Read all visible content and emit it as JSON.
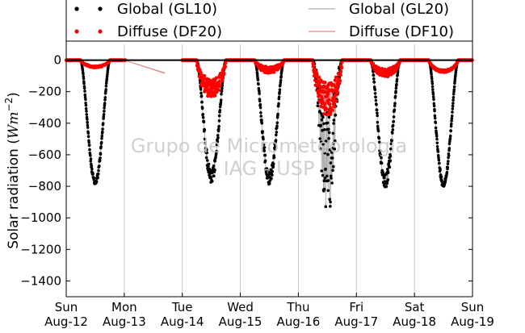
{
  "chart_data": {
    "type": "scatter",
    "title": "",
    "ylabel": "Solar radiation (Wm-2)",
    "ylabel_parts": {
      "text": "Solar radiation",
      "math": "Wm",
      "exp": "−2"
    },
    "xlabel": "",
    "ylim": [
      -1500,
      100
    ],
    "xlim": [
      0,
      7
    ],
    "x_unit": "days since Sun Aug-12 00:00",
    "yticks": [
      0,
      -200,
      -400,
      -600,
      -800,
      -1000,
      -1200,
      -1400
    ],
    "ytick_labels": [
      "0",
      "−200",
      "−400",
      "−600",
      "−800",
      "−1000",
      "−1200",
      "−1400"
    ],
    "xticks": [
      {
        "day": "Sun",
        "date": "Aug-12"
      },
      {
        "day": "Mon",
        "date": "Aug-13"
      },
      {
        "day": "Tue",
        "date": "Aug-14"
      },
      {
        "day": "Wed",
        "date": "Aug-15"
      },
      {
        "day": "Thu",
        "date": "Aug-16"
      },
      {
        "day": "Fri",
        "date": "Aug-17"
      },
      {
        "day": "Sat",
        "date": "Aug-18"
      },
      {
        "day": "Sun",
        "date": "Aug-19"
      }
    ],
    "grid": true,
    "zero_line": true,
    "legend_position": "top (above plot)",
    "watermark": [
      "Grupo de Micrometeorologia",
      "IAG - USP"
    ],
    "colors": {
      "global_markers": "#000000",
      "diffuse_markers": "#ff0000",
      "global_line": "#b0b0b0",
      "diffuse_line": "#f08080",
      "grid": "#c8c8c8",
      "watermark": "#c8c8c8"
    },
    "series": [
      {
        "name": "Global (GL10)",
        "style": "markers",
        "color": "#000000"
      },
      {
        "name": "Global (GL20)",
        "style": "line",
        "color": "#b0b0b0"
      },
      {
        "name": "Diffuse (DF20)",
        "style": "markers",
        "color": "#ff0000"
      },
      {
        "name": "Diffuse (DF10)",
        "style": "line",
        "color": "#f08080"
      }
    ],
    "days": [
      {
        "global_peak": -780,
        "diffuse_peak": -45,
        "start": 0.25,
        "end": 0.75
      },
      {
        "global_peak": 0,
        "diffuse_peak": 0,
        "start": 0.25,
        "end": 0.75
      },
      {
        "global_peak": -760,
        "diffuse_peak": -200,
        "start": 0.25,
        "end": 0.75
      },
      {
        "global_peak": -760,
        "diffuse_peak": -70,
        "start": 0.25,
        "end": 0.75
      },
      {
        "global_peak": -910,
        "diffuse_peak": -280,
        "start": 0.25,
        "end": 0.75
      },
      {
        "global_peak": -780,
        "diffuse_peak": -90,
        "start": 0.25,
        "end": 0.75
      },
      {
        "global_peak": -790,
        "diffuse_peak": -75,
        "start": 0.25,
        "end": 0.75
      }
    ],
    "gap": {
      "from_x": 1.0,
      "to_x": 1.7,
      "from_y": 0,
      "to_y": -80
    }
  }
}
